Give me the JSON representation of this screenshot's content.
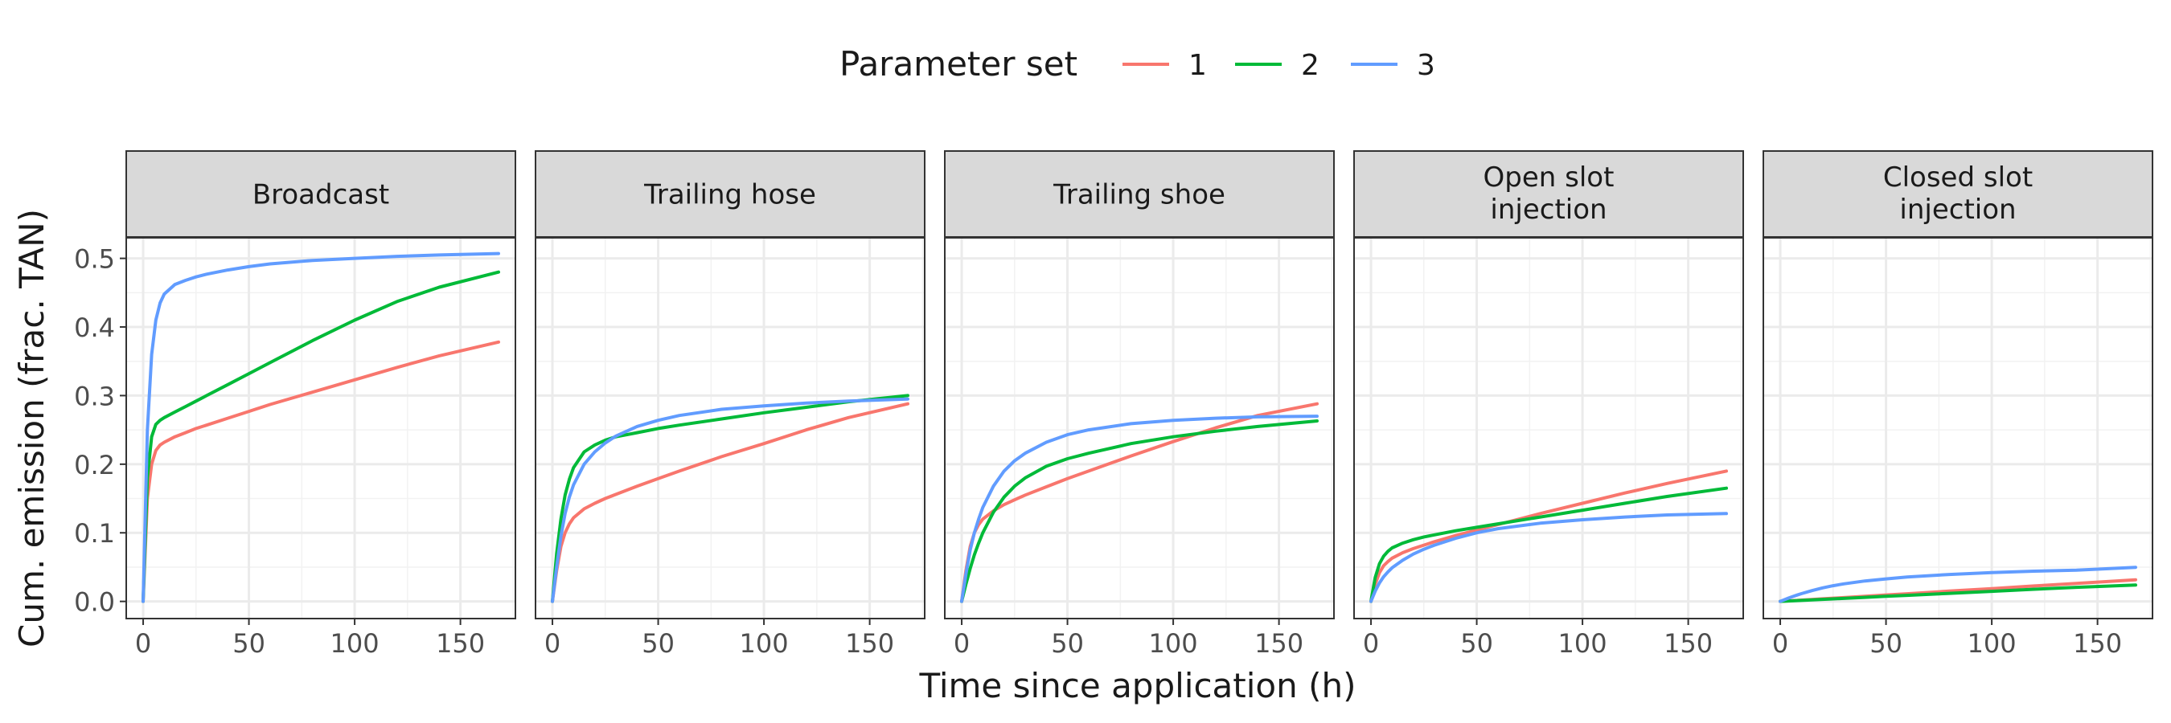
{
  "chart_data": {
    "type": "line",
    "xlabel": "Time since application (h)",
    "ylabel": "Cum. emission (frac. TAN)",
    "xlim": [
      -8,
      176
    ],
    "ylim": [
      -0.025,
      0.53
    ],
    "x_ticks": [
      0,
      50,
      100,
      150
    ],
    "y_ticks": [
      0.0,
      0.1,
      0.2,
      0.3,
      0.4,
      0.5
    ],
    "x_tick_labels": [
      "0",
      "50",
      "100",
      "150"
    ],
    "y_tick_labels": [
      "0.0",
      "0.1",
      "0.2",
      "0.3",
      "0.4",
      "0.5"
    ],
    "grid": true,
    "legend": {
      "title": "Parameter set",
      "placement": "top",
      "entries": [
        {
          "label": "1",
          "color": "#F8766D"
        },
        {
          "label": "2",
          "color": "#00BA38"
        },
        {
          "label": "3",
          "color": "#619CFF"
        }
      ]
    },
    "x": [
      0,
      2,
      4,
      6,
      8,
      10,
      15,
      20,
      25,
      30,
      40,
      50,
      60,
      80,
      100,
      120,
      140,
      168
    ],
    "panels": [
      {
        "title": [
          "Broadcast"
        ],
        "series": [
          {
            "name": "1",
            "values": [
              0,
              0.15,
              0.2,
              0.22,
              0.228,
              0.232,
              0.24,
              0.246,
              0.252,
              0.257,
              0.267,
              0.277,
              0.287,
              0.305,
              0.323,
              0.341,
              0.358,
              0.378
            ]
          },
          {
            "name": "2",
            "values": [
              0,
              0.18,
              0.24,
              0.258,
              0.264,
              0.268,
              0.276,
              0.284,
              0.292,
              0.3,
              0.316,
              0.332,
              0.348,
              0.38,
              0.41,
              0.437,
              0.458,
              0.48
            ]
          },
          {
            "name": "3",
            "values": [
              0,
              0.25,
              0.36,
              0.41,
              0.435,
              0.448,
              0.462,
              0.468,
              0.473,
              0.477,
              0.483,
              0.488,
              0.492,
              0.497,
              0.5,
              0.503,
              0.505,
              0.507
            ]
          }
        ]
      },
      {
        "title": [
          "Trailing hose"
        ],
        "series": [
          {
            "name": "1",
            "values": [
              0,
              0.045,
              0.08,
              0.1,
              0.113,
              0.122,
              0.135,
              0.143,
              0.15,
              0.156,
              0.168,
              0.179,
              0.19,
              0.211,
              0.23,
              0.25,
              0.268,
              0.288
            ]
          },
          {
            "name": "2",
            "values": [
              0,
              0.07,
              0.12,
              0.155,
              0.178,
              0.195,
              0.218,
              0.228,
              0.235,
              0.24,
              0.246,
              0.252,
              0.257,
              0.266,
              0.275,
              0.283,
              0.291,
              0.3
            ]
          },
          {
            "name": "3",
            "values": [
              0,
              0.05,
              0.095,
              0.128,
              0.152,
              0.17,
              0.2,
              0.218,
              0.231,
              0.241,
              0.255,
              0.264,
              0.271,
              0.28,
              0.285,
              0.289,
              0.292,
              0.295
            ]
          }
        ]
      },
      {
        "title": [
          "Trailing shoe"
        ],
        "series": [
          {
            "name": "1",
            "values": [
              0,
              0.045,
              0.08,
              0.1,
              0.112,
              0.12,
              0.132,
              0.141,
              0.148,
              0.155,
              0.167,
              0.179,
              0.19,
              0.212,
              0.233,
              0.253,
              0.271,
              0.288
            ]
          },
          {
            "name": "2",
            "values": [
              0,
              0.025,
              0.048,
              0.068,
              0.085,
              0.1,
              0.13,
              0.152,
              0.168,
              0.18,
              0.197,
              0.208,
              0.216,
              0.23,
              0.24,
              0.248,
              0.255,
              0.263
            ]
          },
          {
            "name": "3",
            "values": [
              0,
              0.04,
              0.075,
              0.1,
              0.12,
              0.137,
              0.168,
              0.19,
              0.205,
              0.216,
              0.232,
              0.243,
              0.25,
              0.259,
              0.264,
              0.267,
              0.269,
              0.27
            ]
          }
        ]
      },
      {
        "title": [
          "Open slot",
          "injection"
        ],
        "series": [
          {
            "name": "1",
            "values": [
              0,
              0.025,
              0.042,
              0.052,
              0.058,
              0.063,
              0.071,
              0.077,
              0.082,
              0.087,
              0.096,
              0.104,
              0.112,
              0.128,
              0.143,
              0.158,
              0.172,
              0.19
            ]
          },
          {
            "name": "2",
            "values": [
              0,
              0.035,
              0.055,
              0.066,
              0.073,
              0.078,
              0.085,
              0.09,
              0.094,
              0.097,
              0.103,
              0.108,
              0.113,
              0.123,
              0.133,
              0.143,
              0.153,
              0.165
            ]
          },
          {
            "name": "3",
            "values": [
              0,
              0.015,
              0.027,
              0.036,
              0.043,
              0.049,
              0.06,
              0.069,
              0.076,
              0.082,
              0.092,
              0.1,
              0.106,
              0.114,
              0.119,
              0.123,
              0.126,
              0.128
            ]
          }
        ]
      },
      {
        "title": [
          "Closed slot",
          "injection"
        ],
        "series": [
          {
            "name": "1",
            "values": [
              0,
              0.0004,
              0.0008,
              0.0012,
              0.0015,
              0.0019,
              0.0028,
              0.0038,
              0.0047,
              0.0056,
              0.0075,
              0.0094,
              0.0112,
              0.015,
              0.0187,
              0.0225,
              0.0262,
              0.0315
            ]
          },
          {
            "name": "2",
            "values": [
              0,
              0.0003,
              0.0006,
              0.0009,
              0.0012,
              0.0015,
              0.0022,
              0.003,
              0.0037,
              0.0044,
              0.0059,
              0.0074,
              0.0088,
              0.0118,
              0.0147,
              0.0177,
              0.0206,
              0.0238
            ]
          },
          {
            "name": "3",
            "values": [
              0,
              0.0025,
              0.005,
              0.0072,
              0.0093,
              0.0113,
              0.0158,
              0.0197,
              0.0229,
              0.0256,
              0.0298,
              0.0329,
              0.0355,
              0.0393,
              0.0421,
              0.0441,
              0.0456,
              0.0497
            ]
          }
        ]
      }
    ]
  }
}
